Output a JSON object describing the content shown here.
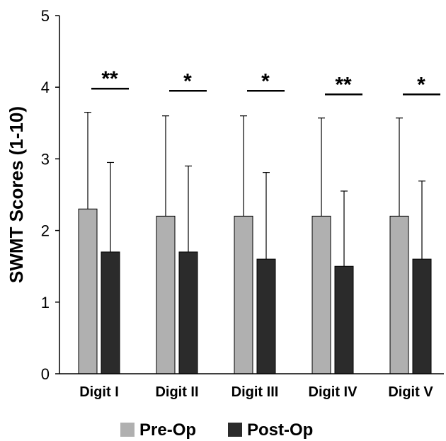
{
  "chart_data": {
    "type": "bar",
    "categories": [
      "Digit I",
      "Digit II",
      "Digit III",
      "Digit IV",
      "Digit V"
    ],
    "series": [
      {
        "name": "Pre-Op",
        "values": [
          2.3,
          2.2,
          2.2,
          2.2,
          2.2
        ],
        "error_upper": [
          3.65,
          3.6,
          3.6,
          3.57,
          3.57
        ],
        "color": "#b0b0b0"
      },
      {
        "name": "Post-Op",
        "values": [
          1.7,
          1.7,
          1.6,
          1.5,
          1.6
        ],
        "error_upper": [
          2.95,
          2.9,
          2.81,
          2.55,
          2.69
        ],
        "color": "#2b2b2b"
      }
    ],
    "significance": [
      "**",
      "*",
      "*",
      "**",
      "*"
    ],
    "significance_level": [
      3.98,
      3.95,
      3.95,
      3.9,
      3.9
    ],
    "ylabel": "SWMT  Scores (1-10)",
    "ylim": [
      0,
      5
    ],
    "yticks": [
      "0",
      "1",
      "2",
      "3",
      "4",
      "5"
    ],
    "grid": false,
    "legend_position": "bottom"
  }
}
